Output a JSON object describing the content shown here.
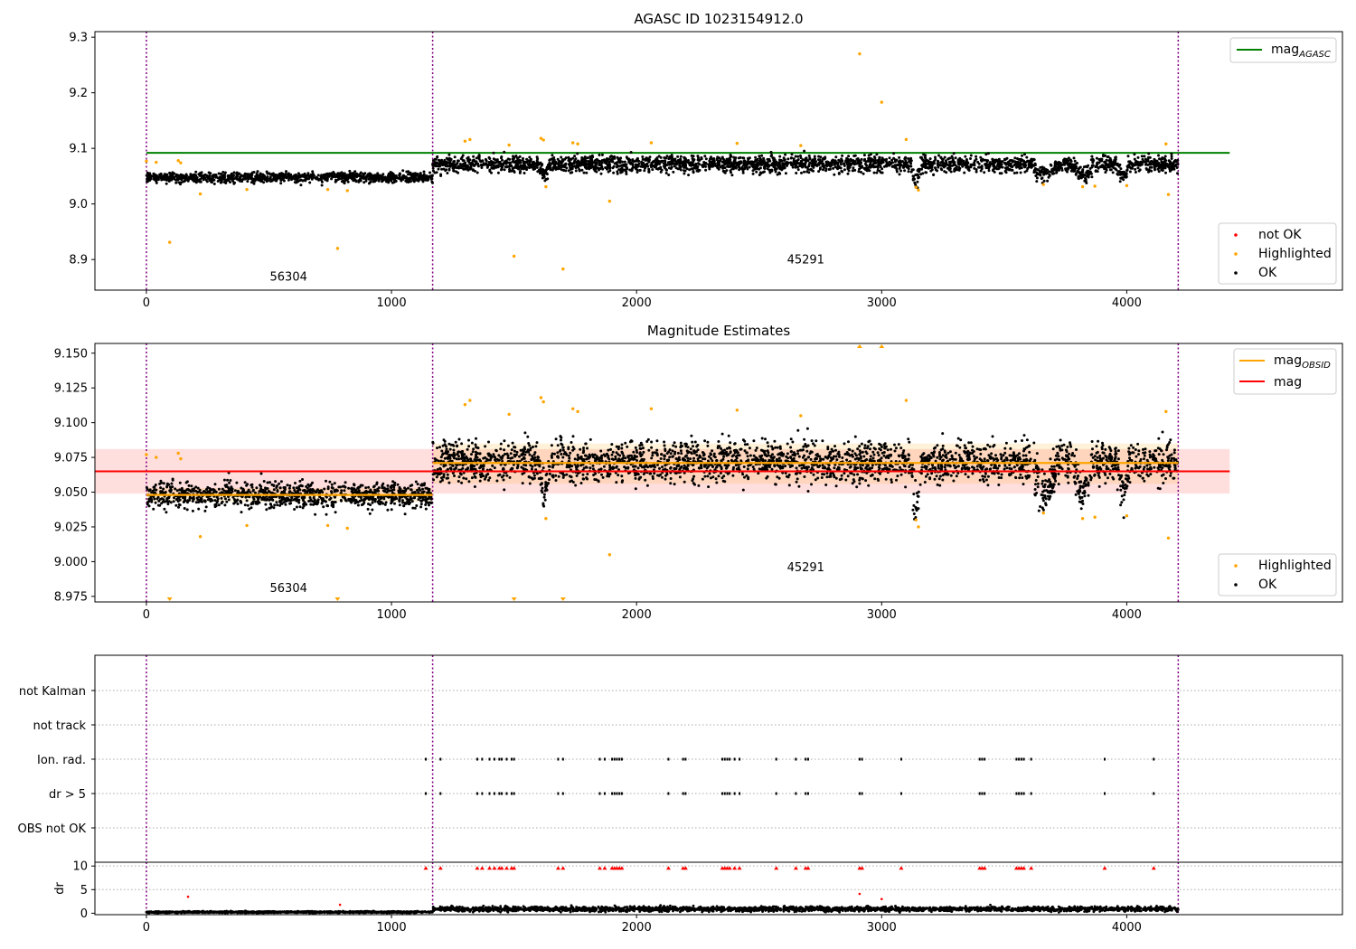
{
  "chart_data": [
    {
      "type": "scatter",
      "title": "AGASC ID 1023154912.0",
      "xlim": [
        -210,
        4880
      ],
      "ylim": [
        8.845,
        9.31
      ],
      "xticks": [
        0,
        1000,
        2000,
        3000,
        4000
      ],
      "xtick_labels": [
        "0",
        "1000",
        "2000",
        "3000",
        "4000"
      ],
      "yticks": [
        8.9,
        9.0,
        9.1,
        9.2,
        9.3
      ],
      "ytick_labels": [
        "8.9",
        "9.0",
        "9.1",
        "9.2",
        "9.3"
      ],
      "obsid_boundaries": [
        0,
        1168,
        4210
      ],
      "obsid_labels": [
        {
          "text": "56304",
          "x": 580,
          "y": 8.862
        },
        {
          "text": "45291",
          "x": 2690,
          "y": 8.893
        }
      ],
      "lines": [
        {
          "name": "mag",
          "sub": "AGASC",
          "color": "#008000",
          "x0": 0,
          "x1": 4420,
          "y": 9.092
        }
      ],
      "segments": [
        {
          "x0": 0,
          "x1": 1168,
          "mean": 9.048,
          "spread": 0.008
        },
        {
          "x0": 1168,
          "x1": 4210,
          "mean": 9.072,
          "spread": 0.013
        }
      ],
      "legend_top": [
        {
          "label": "mag",
          "sub": "AGASC",
          "color": "#008000"
        }
      ],
      "legend_bottom": [
        {
          "label": "not OK",
          "color": "#ff0000"
        },
        {
          "label": "Highlighted",
          "color": "#ffa500"
        },
        {
          "label": "OK",
          "color": "#000000"
        }
      ],
      "highlighted": [
        [
          0,
          9.077
        ],
        [
          40,
          9.075
        ],
        [
          95,
          8.931
        ],
        [
          130,
          9.078
        ],
        [
          140,
          9.074
        ],
        [
          220,
          9.018
        ],
        [
          410,
          9.026
        ],
        [
          780,
          8.92
        ],
        [
          740,
          9.026
        ],
        [
          820,
          9.024
        ],
        [
          1300,
          9.113
        ],
        [
          1320,
          9.116
        ],
        [
          1480,
          9.106
        ],
        [
          1500,
          8.906
        ],
        [
          1610,
          9.118
        ],
        [
          1620,
          9.115
        ],
        [
          1630,
          9.031
        ],
        [
          1700,
          8.883
        ],
        [
          1740,
          9.11
        ],
        [
          1760,
          9.108
        ],
        [
          1890,
          9.005
        ],
        [
          2060,
          9.11
        ],
        [
          2410,
          9.109
        ],
        [
          2670,
          9.105
        ],
        [
          2910,
          9.27
        ],
        [
          3000,
          9.183
        ],
        [
          3100,
          9.116
        ],
        [
          3140,
          9.03
        ],
        [
          3150,
          9.025
        ],
        [
          3660,
          9.035
        ],
        [
          3820,
          9.031
        ],
        [
          3870,
          9.032
        ],
        [
          4000,
          9.033
        ],
        [
          4160,
          9.108
        ],
        [
          4170,
          9.017
        ]
      ],
      "dips": [
        [
          1600,
          1650,
          0.02
        ],
        [
          3120,
          3160,
          0.03
        ],
        [
          3610,
          3720,
          0.02
        ],
        [
          3780,
          3860,
          0.02
        ],
        [
          3960,
          4010,
          0.02
        ]
      ]
    },
    {
      "type": "scatter",
      "title": "Magnitude Estimates",
      "xlim": [
        -210,
        4880
      ],
      "ylim": [
        8.971,
        9.157
      ],
      "xticks": [
        0,
        1000,
        2000,
        3000,
        4000
      ],
      "xtick_labels": [
        "0",
        "1000",
        "2000",
        "3000",
        "4000"
      ],
      "yticks": [
        8.975,
        9.0,
        9.025,
        9.05,
        9.075,
        9.1,
        9.125,
        9.15
      ],
      "ytick_labels": [
        "8.975",
        "9.000",
        "9.025",
        "9.050",
        "9.075",
        "9.100",
        "9.125",
        "9.150"
      ],
      "obsid_boundaries": [
        0,
        1168,
        4210
      ],
      "obsid_labels": [
        {
          "text": "56304",
          "x": 580,
          "y": 8.978
        },
        {
          "text": "45291",
          "x": 2690,
          "y": 8.993
        }
      ],
      "mag": {
        "value": 9.065,
        "band": [
          9.049,
          9.081
        ],
        "x0": -210,
        "x1": 4420,
        "color": "#ff0000"
      },
      "obsid_mags": [
        {
          "x0": 0,
          "x1": 1168,
          "value": 9.048,
          "band": [
            9.043,
            9.053
          ]
        },
        {
          "x0": 1168,
          "x1": 4210,
          "value": 9.071,
          "band": [
            9.056,
            9.085
          ]
        }
      ],
      "legend_top": [
        {
          "label": "mag",
          "sub": "OBSID",
          "color": "#ffa500"
        },
        {
          "label": "mag",
          "sub": "",
          "color": "#ff0000"
        }
      ],
      "legend_bottom": [
        {
          "label": "Highlighted",
          "color": "#ffa500"
        },
        {
          "label": "OK",
          "color": "#000000"
        }
      ],
      "outliers_above": [
        2910,
        3000
      ],
      "outliers_below": [
        95,
        780,
        1500,
        1700
      ]
    },
    {
      "type": "scatter",
      "title": "",
      "xlim": [
        -210,
        4880
      ],
      "flag_rows": [
        "not Kalman",
        "not track",
        "Ion. rad.",
        "dr > 5",
        "OBS not OK"
      ],
      "flag_x": [
        1140,
        1200,
        1350,
        1370,
        1400,
        1420,
        1440,
        1450,
        1470,
        1490,
        1500,
        1680,
        1700,
        1850,
        1870,
        1900,
        1910,
        1920,
        1930,
        1940,
        2130,
        2190,
        2200,
        2350,
        2360,
        2370,
        2380,
        2400,
        2420,
        2570,
        2650,
        2690,
        2700,
        2910,
        2920,
        3080,
        3400,
        3410,
        3420,
        3550,
        3560,
        3570,
        3580,
        3610,
        3910,
        4110
      ],
      "dr_xticks": [
        0,
        1000,
        2000,
        3000,
        4000
      ],
      "dr_xtick_labels": [
        "0",
        "1000",
        "2000",
        "3000",
        "4000"
      ],
      "dr_ylabel": "dr",
      "dr_yticks": [
        0,
        5,
        10
      ],
      "dr_ytick_labels": [
        "0",
        "5",
        "10"
      ],
      "dr_ylim": [
        -0.3,
        10.8
      ],
      "dr_extra_red": [
        [
          170,
          3.5
        ],
        [
          790,
          1.8
        ],
        [
          2910,
          4.1
        ],
        [
          3000,
          3.0
        ]
      ]
    }
  ]
}
